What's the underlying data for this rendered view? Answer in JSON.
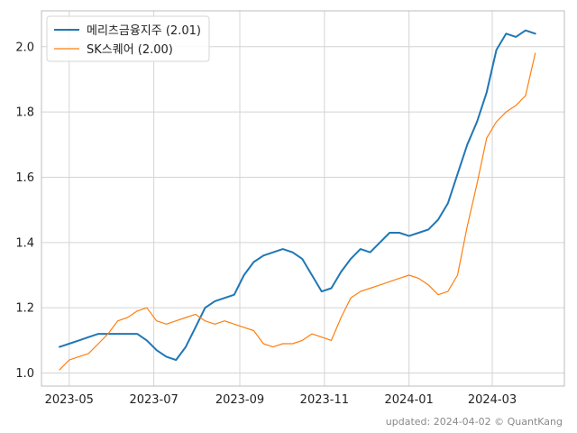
{
  "chart_data": {
    "type": "line",
    "title": "",
    "xlabel": "",
    "ylabel": "",
    "x_ticks": [
      "2023-05",
      "2023-07",
      "2023-09",
      "2023-11",
      "2024-01",
      "2024-03"
    ],
    "x_tick_dates": [
      "2023-05-01",
      "2023-07-01",
      "2023-09-01",
      "2023-11-01",
      "2024-01-01",
      "2024-03-01"
    ],
    "y_ticks": [
      "1.0",
      "1.2",
      "1.4",
      "1.6",
      "1.8",
      "2.0"
    ],
    "y_tick_values": [
      1.0,
      1.2,
      1.4,
      1.6,
      1.8,
      2.0
    ],
    "xlim": [
      "2023-04-11",
      "2024-04-22"
    ],
    "ylim": [
      0.96,
      2.11
    ],
    "grid": true,
    "legend_position": "top-left",
    "series": [
      {
        "name": "메리츠금융지주 (2.01)",
        "color": "#1f77b4",
        "points": [
          [
            "2023-04-24",
            1.08
          ],
          [
            "2023-05-01",
            1.09
          ],
          [
            "2023-05-08",
            1.1
          ],
          [
            "2023-05-15",
            1.11
          ],
          [
            "2023-05-22",
            1.12
          ],
          [
            "2023-05-29",
            1.12
          ],
          [
            "2023-06-05",
            1.12
          ],
          [
            "2023-06-12",
            1.12
          ],
          [
            "2023-06-19",
            1.12
          ],
          [
            "2023-06-26",
            1.1
          ],
          [
            "2023-07-03",
            1.07
          ],
          [
            "2023-07-10",
            1.05
          ],
          [
            "2023-07-17",
            1.04
          ],
          [
            "2023-07-24",
            1.08
          ],
          [
            "2023-07-31",
            1.14
          ],
          [
            "2023-08-07",
            1.2
          ],
          [
            "2023-08-14",
            1.22
          ],
          [
            "2023-08-21",
            1.23
          ],
          [
            "2023-08-28",
            1.24
          ],
          [
            "2023-09-04",
            1.3
          ],
          [
            "2023-09-11",
            1.34
          ],
          [
            "2023-09-18",
            1.36
          ],
          [
            "2023-09-25",
            1.37
          ],
          [
            "2023-10-02",
            1.38
          ],
          [
            "2023-10-09",
            1.37
          ],
          [
            "2023-10-16",
            1.35
          ],
          [
            "2023-10-23",
            1.3
          ],
          [
            "2023-10-30",
            1.25
          ],
          [
            "2023-11-06",
            1.26
          ],
          [
            "2023-11-13",
            1.31
          ],
          [
            "2023-11-20",
            1.35
          ],
          [
            "2023-11-27",
            1.38
          ],
          [
            "2023-12-04",
            1.37
          ],
          [
            "2023-12-11",
            1.4
          ],
          [
            "2023-12-18",
            1.43
          ],
          [
            "2023-12-25",
            1.43
          ],
          [
            "2024-01-01",
            1.42
          ],
          [
            "2024-01-08",
            1.43
          ],
          [
            "2024-01-15",
            1.44
          ],
          [
            "2024-01-22",
            1.47
          ],
          [
            "2024-01-29",
            1.52
          ],
          [
            "2024-02-05",
            1.61
          ],
          [
            "2024-02-12",
            1.7
          ],
          [
            "2024-02-19",
            1.77
          ],
          [
            "2024-02-26",
            1.86
          ],
          [
            "2024-03-04",
            1.99
          ],
          [
            "2024-03-11",
            2.04
          ],
          [
            "2024-03-18",
            2.03
          ],
          [
            "2024-03-25",
            2.05
          ],
          [
            "2024-04-01",
            2.04
          ]
        ]
      },
      {
        "name": "SK스퀘어 (2.00)",
        "color": "#ff7f0e",
        "points": [
          [
            "2023-04-24",
            1.01
          ],
          [
            "2023-05-01",
            1.04
          ],
          [
            "2023-05-08",
            1.05
          ],
          [
            "2023-05-15",
            1.06
          ],
          [
            "2023-05-22",
            1.09
          ],
          [
            "2023-05-29",
            1.12
          ],
          [
            "2023-06-05",
            1.16
          ],
          [
            "2023-06-12",
            1.17
          ],
          [
            "2023-06-19",
            1.19
          ],
          [
            "2023-06-26",
            1.2
          ],
          [
            "2023-07-03",
            1.16
          ],
          [
            "2023-07-10",
            1.15
          ],
          [
            "2023-07-17",
            1.16
          ],
          [
            "2023-07-24",
            1.17
          ],
          [
            "2023-07-31",
            1.18
          ],
          [
            "2023-08-07",
            1.16
          ],
          [
            "2023-08-14",
            1.15
          ],
          [
            "2023-08-21",
            1.16
          ],
          [
            "2023-08-28",
            1.15
          ],
          [
            "2023-09-04",
            1.14
          ],
          [
            "2023-09-11",
            1.13
          ],
          [
            "2023-09-18",
            1.09
          ],
          [
            "2023-09-25",
            1.08
          ],
          [
            "2023-10-02",
            1.09
          ],
          [
            "2023-10-09",
            1.09
          ],
          [
            "2023-10-16",
            1.1
          ],
          [
            "2023-10-23",
            1.12
          ],
          [
            "2023-10-30",
            1.11
          ],
          [
            "2023-11-06",
            1.1
          ],
          [
            "2023-11-13",
            1.17
          ],
          [
            "2023-11-20",
            1.23
          ],
          [
            "2023-11-27",
            1.25
          ],
          [
            "2023-12-04",
            1.26
          ],
          [
            "2023-12-11",
            1.27
          ],
          [
            "2023-12-18",
            1.28
          ],
          [
            "2023-12-25",
            1.29
          ],
          [
            "2024-01-01",
            1.3
          ],
          [
            "2024-01-08",
            1.29
          ],
          [
            "2024-01-15",
            1.27
          ],
          [
            "2024-01-22",
            1.24
          ],
          [
            "2024-01-29",
            1.25
          ],
          [
            "2024-02-05",
            1.3
          ],
          [
            "2024-02-12",
            1.45
          ],
          [
            "2024-02-19",
            1.58
          ],
          [
            "2024-02-26",
            1.72
          ],
          [
            "2024-03-04",
            1.77
          ],
          [
            "2024-03-11",
            1.8
          ],
          [
            "2024-03-18",
            1.82
          ],
          [
            "2024-03-25",
            1.85
          ],
          [
            "2024-04-01",
            1.98
          ]
        ]
      }
    ]
  },
  "footer": {
    "text": "updated: 2024-04-02 © QuantKang"
  }
}
